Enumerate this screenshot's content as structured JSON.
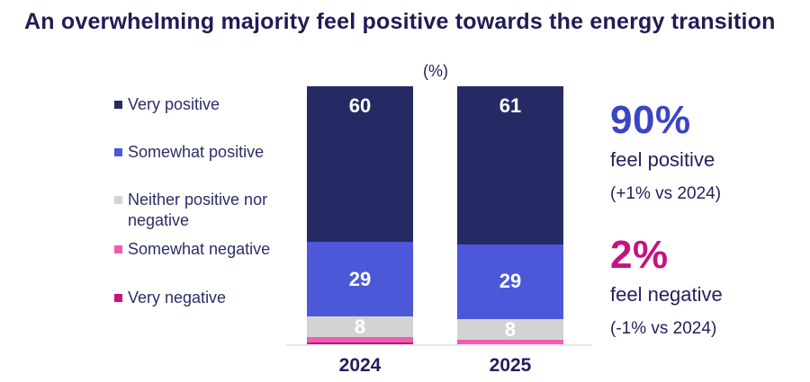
{
  "title": "An overwhelming majority feel positive towards the energy transition",
  "chart_data": {
    "type": "bar",
    "stacked": true,
    "title": "An overwhelming majority feel positive towards the energy transition",
    "unit_label": "(%)",
    "categories": [
      "2024",
      "2025"
    ],
    "series": [
      {
        "name": "Very positive",
        "color": "#262a64",
        "values": [
          60,
          61
        ],
        "labeled": true
      },
      {
        "name": "Somewhat positive",
        "color": "#4c58d7",
        "values": [
          29,
          29
        ],
        "labeled": true
      },
      {
        "name": "Neither positive nor negative",
        "color": "#d3d3d4",
        "values": [
          8,
          8
        ],
        "labeled": true
      },
      {
        "name": "Somewhat negative",
        "color": "#ee5eb2",
        "values": [
          2,
          2
        ],
        "labeled": false
      },
      {
        "name": "Very negative",
        "color": "#c9147e",
        "values": [
          1,
          0
        ],
        "labeled": false
      }
    ],
    "ylim": [
      0,
      100
    ],
    "gridlines": false,
    "legend_position": "left"
  },
  "annotations": {
    "positive": {
      "value": "90%",
      "line1": "feel positive",
      "line2": "(+1% vs 2024)",
      "color": "#3a45c6"
    },
    "negative": {
      "value": "2%",
      "line1": "feel negative",
      "line2": "(-1% vs 2024)",
      "color": "#c51381"
    }
  },
  "colors": {
    "title_text": "#201c55",
    "body_text": "#221f5b",
    "bar_value_text": "#ffffff",
    "baseline": "#e6e6ea"
  }
}
